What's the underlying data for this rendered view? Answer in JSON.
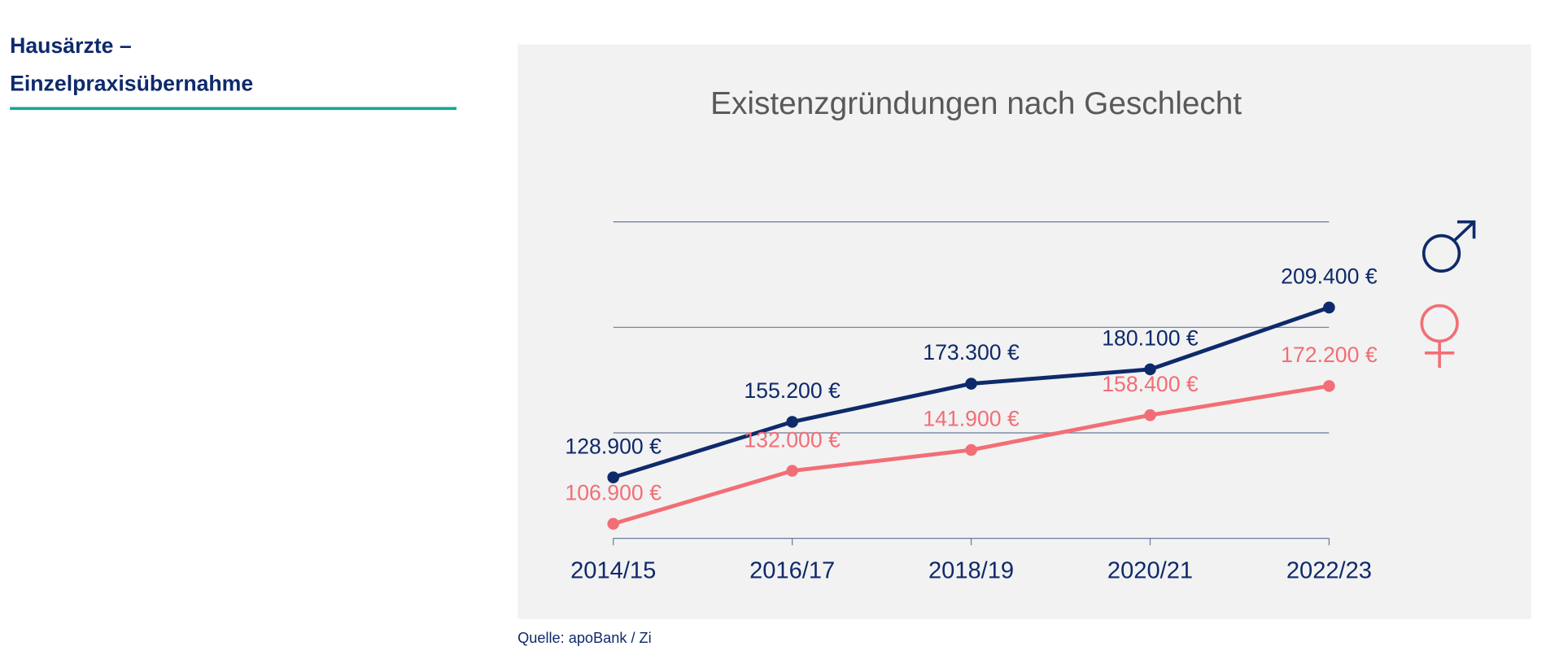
{
  "heading": {
    "lines": [
      "Hausärzte –",
      "Einzelpraxisübernahme"
    ]
  },
  "source": "Quelle: apoBank / Zi",
  "chart_data": {
    "type": "line",
    "title": "Existenzgründungen nach Geschlecht",
    "categories": [
      "2014/15",
      "2016/17",
      "2018/19",
      "2020/21",
      "2022/23"
    ],
    "series": [
      {
        "color": "#0e2a6b",
        "values": [
          128900,
          155200,
          173300,
          180100,
          209400
        ],
        "value_labels": [
          "128.900 €",
          "155.200 €",
          "173.300 €",
          "180.100 €",
          "209.400 €"
        ]
      },
      {
        "color": "#f26e76",
        "values": [
          106900,
          132000,
          141900,
          158400,
          172200
        ],
        "value_labels": [
          "106.900 €",
          "132.000 €",
          "141.900 €",
          "158.400 €",
          "172.200 €"
        ]
      }
    ],
    "ylim": [
      100000,
      250000
    ],
    "yticks": [
      100000,
      150000,
      200000,
      250000
    ],
    "grid": true
  }
}
